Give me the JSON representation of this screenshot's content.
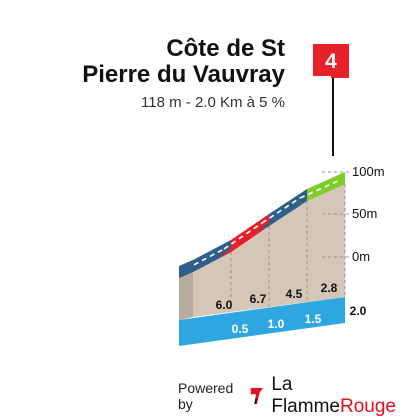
{
  "chart_data": {
    "type": "area",
    "title_lines": [
      "Côte de St",
      "Pierre du Vauvray"
    ],
    "subtitle": "118 m - 2.0 Km à 5 %",
    "flag_number": "4",
    "altitude_labels": [
      "100m",
      "50m",
      "0m"
    ],
    "distance_marks": [
      "0.5",
      "1.0",
      "1.5",
      "2.0"
    ],
    "segment_gradients": [
      "6.0",
      "6.7",
      "4.5",
      "2.8"
    ],
    "segments": [
      {
        "km_start": 0.0,
        "km_end": 0.5,
        "gradient": 6.0,
        "color": "#2d5f8a"
      },
      {
        "km_start": 0.5,
        "km_end": 1.0,
        "gradient": 6.7,
        "color": "#e8202a"
      },
      {
        "km_start": 1.0,
        "km_end": 1.5,
        "gradient": 4.5,
        "color": "#2d5f8a"
      },
      {
        "km_start": 1.5,
        "km_end": 2.0,
        "gradient": 2.8,
        "color": "#7ccc2a"
      }
    ],
    "colors": {
      "fill": "#d4c7b7",
      "side": "#b6ab9c",
      "base": "#2ea7e0",
      "flag": "#e8202a",
      "grid": "#9a9185"
    }
  },
  "footer": {
    "powered_by": "Powered by",
    "brand_part1": "La Flamme",
    "brand_part2": "Rouge"
  }
}
